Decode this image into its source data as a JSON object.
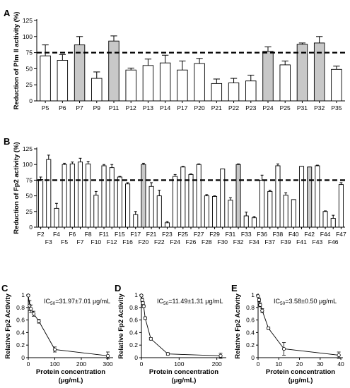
{
  "chart_data": [
    {
      "panel": "A",
      "type": "bar",
      "ylabel": "Reduction of Plm II activity (%)",
      "ylim": [
        0,
        125
      ],
      "yticks": [
        0,
        25,
        50,
        75,
        100,
        125
      ],
      "reference_line": 75,
      "categories": [
        "P5",
        "P6",
        "P7",
        "P9",
        "P11",
        "P12",
        "P13",
        "P14",
        "P17",
        "P20",
        "P21",
        "P22",
        "P23",
        "P24",
        "P25",
        "P31",
        "P32",
        "P35"
      ],
      "values": [
        70,
        63,
        87,
        35,
        93,
        48,
        55,
        59,
        48,
        58,
        27,
        28,
        31,
        77,
        56,
        88,
        90,
        49
      ],
      "errors": [
        17,
        9,
        13,
        10,
        8,
        3,
        10,
        12,
        14,
        8,
        7,
        7,
        9,
        7,
        6,
        2,
        10,
        5
      ],
      "highlighted": [
        false,
        false,
        true,
        false,
        true,
        false,
        false,
        false,
        false,
        false,
        false,
        false,
        false,
        true,
        false,
        true,
        true,
        false
      ],
      "colors": {
        "highlight": "#c8c8c8",
        "default": "#ffffff"
      }
    },
    {
      "panel": "B",
      "type": "bar",
      "ylabel": "Reduction of Fp2 activity (%)",
      "ylim": [
        0,
        125
      ],
      "yticks": [
        0,
        25,
        50,
        75,
        100,
        125
      ],
      "reference_line": 75,
      "categories": [
        "F2",
        "F3",
        "F4",
        "F5",
        "F6",
        "F7",
        "F8",
        "F10",
        "F11",
        "F12",
        "F15",
        "F16",
        "F17",
        "F20",
        "F21",
        "F22",
        "F23",
        "F24",
        "F25",
        "F26",
        "F27",
        "F28",
        "F29",
        "F30",
        "F31",
        "F32",
        "F33",
        "F34",
        "F36",
        "F37",
        "F38",
        "F39",
        "F40",
        "F41",
        "F42",
        "F43",
        "F44",
        "F46",
        "F47"
      ],
      "values": [
        76,
        108,
        30,
        100,
        101,
        104,
        101,
        51,
        98,
        95,
        80,
        69,
        20,
        100,
        65,
        50,
        7,
        81,
        96,
        84,
        100,
        50,
        49,
        93,
        43,
        100,
        18,
        15,
        75,
        57,
        98,
        51,
        44,
        97,
        96,
        98,
        25,
        14,
        68
      ],
      "errors": [
        4,
        7,
        8,
        2,
        3,
        6,
        4,
        6,
        2,
        5,
        1,
        2,
        5,
        2,
        6,
        9,
        2,
        3,
        1,
        1,
        1,
        2,
        1,
        0,
        4,
        1,
        6,
        2,
        8,
        2,
        3,
        4,
        0,
        0,
        0,
        1,
        1,
        5,
        3
      ],
      "highlighted": [
        false,
        false,
        false,
        false,
        false,
        false,
        false,
        false,
        false,
        false,
        false,
        false,
        false,
        true,
        false,
        false,
        false,
        false,
        false,
        false,
        false,
        false,
        false,
        false,
        false,
        true,
        false,
        false,
        false,
        false,
        false,
        false,
        false,
        false,
        true,
        false,
        false,
        false,
        false
      ],
      "colors": {
        "highlight": "#c8c8c8",
        "default": "#ffffff"
      }
    },
    {
      "panel": "C",
      "type": "line",
      "ylabel": "Relative Fp2 Activity",
      "xlabel": "Protein concentration (μg/mL)",
      "annotation": "IC50=31.97±7.01 μg/mL",
      "xlim": [
        0,
        320
      ],
      "ylim": [
        0,
        1.0
      ],
      "xticks": [
        0,
        100,
        200,
        300
      ],
      "yticks": [
        0,
        0.2,
        0.4,
        0.6,
        0.8,
        1.0
      ],
      "x": [
        0,
        5,
        10,
        20,
        40,
        100,
        300
      ],
      "y": [
        0.99,
        0.83,
        0.78,
        0.7,
        0.58,
        0.13,
        0.03
      ],
      "errors": [
        0.01,
        0.08,
        0.06,
        0.04,
        0.03,
        0.04,
        0.06
      ]
    },
    {
      "panel": "D",
      "type": "line",
      "ylabel": "Relative Fp2 Activity",
      "xlabel": "Protein concentration (μg/mL)",
      "annotation": "IC50=11.49±1.31 μg/mL",
      "xlim": [
        0,
        225
      ],
      "ylim": [
        0,
        1.0
      ],
      "xticks": [
        0,
        100,
        200
      ],
      "yticks": [
        0,
        0.2,
        0.4,
        0.6,
        0.8,
        1.0
      ],
      "x": [
        0,
        2,
        4,
        6,
        10,
        25,
        70,
        210
      ],
      "y": [
        0.99,
        0.92,
        0.87,
        0.82,
        0.63,
        0.3,
        0.06,
        0.03
      ],
      "errors": [
        0.01,
        0.03,
        0.02,
        0.02,
        0.02,
        0.02,
        0.02,
        0.04
      ]
    },
    {
      "panel": "E",
      "type": "line",
      "ylabel": "Relative Fp2 Activity",
      "xlabel": "Protein concentration (μg/mL)",
      "annotation": "IC50=3.58±0.50 μg/mL",
      "xlim": [
        0,
        41
      ],
      "ylim": [
        0,
        1.0
      ],
      "xticks": [
        0,
        10,
        20,
        30,
        40
      ],
      "yticks": [
        0,
        0.2,
        0.4,
        0.6,
        0.8,
        1.0
      ],
      "x": [
        0,
        0.5,
        1,
        2,
        5,
        12.5,
        39
      ],
      "y": [
        0.98,
        0.92,
        0.84,
        0.75,
        0.47,
        0.14,
        0.04
      ],
      "errors": [
        0.01,
        0.03,
        0.03,
        0.03,
        0.02,
        0.1,
        0.05
      ]
    }
  ]
}
